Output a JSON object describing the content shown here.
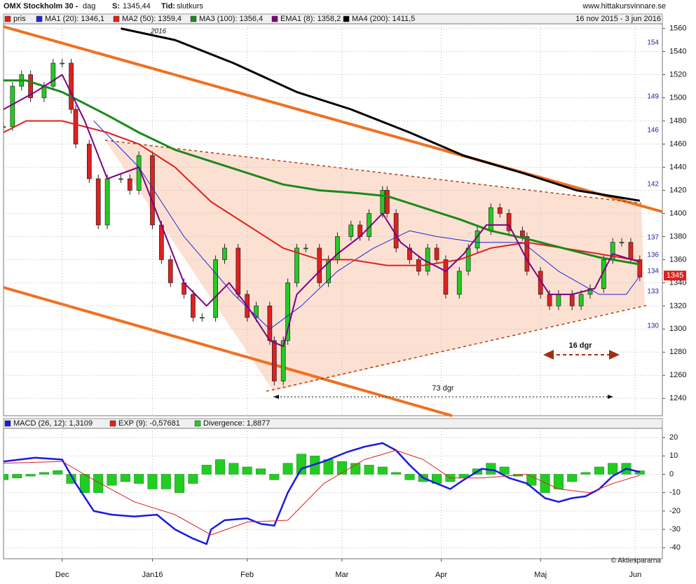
{
  "header": {
    "title": "OMX Stockholm 30 -",
    "interval": "dag",
    "price_label": "S:",
    "price": "1345,44",
    "time_label": "Tid:",
    "time": "slutkurs",
    "site": "www.hittakursvinnare.se",
    "range": "16 nov 2015 - 3 jun 2016"
  },
  "chart_data": [
    {
      "type": "line",
      "xlim": [
        0,
        146
      ],
      "ylim": [
        1225,
        1564
      ],
      "yticks": [
        1240,
        1260,
        1280,
        1300,
        1320,
        1340,
        1360,
        1380,
        1400,
        1420,
        1440,
        1460,
        1480,
        1500,
        1520,
        1540,
        1560
      ],
      "xticks": [
        {
          "value": 13,
          "label": "Dec"
        },
        {
          "value": 33,
          "label": "Jan16"
        },
        {
          "value": 54,
          "label": "Feb"
        },
        {
          "value": 75,
          "label": "Mar"
        },
        {
          "value": 97,
          "label": "Apr"
        },
        {
          "value": 119,
          "label": "Maj"
        },
        {
          "value": 140,
          "label": "Jun"
        }
      ],
      "grid": true,
      "annotations": [
        "16 dgr",
        "73 dgr"
      ],
      "year_label": "2016",
      "last_price_label": "1345",
      "side_labels": [
        "154",
        "149",
        "146",
        "142",
        "137",
        "136",
        "134",
        "133",
        "130"
      ],
      "series": [
        {
          "name": "pris",
          "color": "#e02020",
          "style": "candles",
          "x": [
            0,
            2,
            4,
            6,
            9,
            11,
            13,
            15,
            16,
            19,
            21,
            23,
            26,
            28,
            30,
            33,
            35,
            37,
            40,
            42,
            44,
            47,
            49,
            52,
            54,
            56,
            59,
            60,
            62,
            63,
            65,
            67,
            70,
            72,
            74,
            77,
            79,
            81,
            84,
            85,
            87,
            90,
            92,
            94,
            96,
            98,
            101,
            103,
            105,
            108,
            110,
            112,
            115,
            116,
            119,
            121,
            123,
            126,
            128,
            130,
            133,
            135,
            137,
            139,
            141
          ],
          "values": [
            1475,
            1510,
            1520,
            1500,
            1510,
            1530,
            1530,
            1490,
            1460,
            1430,
            1390,
            1430,
            1430,
            1420,
            1450,
            1390,
            1360,
            1340,
            1330,
            1310,
            1310,
            1360,
            1370,
            1330,
            1310,
            1320,
            1290,
            1255,
            1290,
            1340,
            1370,
            1370,
            1340,
            1360,
            1380,
            1390,
            1380,
            1400,
            1420,
            1400,
            1370,
            1360,
            1350,
            1370,
            1360,
            1330,
            1350,
            1370,
            1385,
            1405,
            1400,
            1385,
            1380,
            1350,
            1330,
            1320,
            1330,
            1320,
            1330,
            1335,
            1360,
            1375,
            1375,
            1360,
            1345
          ]
        },
        {
          "name": "MA1 (20): 1346,1",
          "color": "#2323d8",
          "width": 1,
          "x": [
            20,
            30,
            40,
            51,
            59,
            66,
            74,
            82,
            90,
            96,
            105,
            115,
            123,
            132,
            138,
            141
          ],
          "values": [
            1480,
            1440,
            1380,
            1330,
            1300,
            1320,
            1350,
            1370,
            1385,
            1380,
            1375,
            1375,
            1350,
            1330,
            1330,
            1346
          ]
        },
        {
          "name": "MA2 (50): 1359,4",
          "color": "#e02020",
          "width": 2,
          "x": [
            0,
            5,
            13,
            23,
            30,
            38,
            46,
            54,
            62,
            70,
            77,
            85,
            93,
            101,
            108,
            116,
            124,
            132,
            141
          ],
          "values": [
            1470,
            1480,
            1480,
            1470,
            1460,
            1440,
            1410,
            1390,
            1370,
            1360,
            1360,
            1355,
            1355,
            1360,
            1370,
            1375,
            1370,
            1365,
            1359
          ]
        },
        {
          "name": "MA3 (100): 1356,4",
          "color": "#1a8a1a",
          "width": 3,
          "x": [
            0,
            5,
            13,
            23,
            30,
            38,
            46,
            54,
            62,
            70,
            77,
            85,
            93,
            101,
            108,
            116,
            124,
            132,
            141
          ],
          "values": [
            1515,
            1515,
            1505,
            1485,
            1470,
            1455,
            1445,
            1435,
            1425,
            1420,
            1418,
            1415,
            1405,
            1395,
            1385,
            1378,
            1370,
            1362,
            1356
          ]
        },
        {
          "name": "EMA1 (8): 1358,2",
          "color": "#800080",
          "width": 2,
          "x": [
            0,
            7,
            13,
            18,
            23,
            30,
            35,
            40,
            45,
            50,
            54,
            59,
            62,
            65,
            70,
            74,
            79,
            84,
            88,
            93,
            98,
            102,
            107,
            112,
            116,
            121,
            126,
            131,
            135,
            141
          ],
          "values": [
            1490,
            1505,
            1520,
            1480,
            1430,
            1440,
            1390,
            1340,
            1320,
            1340,
            1320,
            1290,
            1285,
            1330,
            1350,
            1365,
            1380,
            1400,
            1375,
            1360,
            1350,
            1365,
            1390,
            1390,
            1360,
            1330,
            1330,
            1335,
            1365,
            1358
          ]
        },
        {
          "name": "MA4 (200): 1411,5",
          "color": "#000000",
          "width": 3,
          "x": [
            26,
            38,
            51,
            65,
            77,
            90,
            102,
            115,
            127,
            141
          ],
          "values": [
            1560,
            1550,
            1530,
            1505,
            1490,
            1470,
            1450,
            1435,
            1420,
            1411
          ]
        }
      ]
    },
    {
      "type": "line",
      "xlim": [
        0,
        146
      ],
      "ylim": [
        -46,
        25
      ],
      "yticks": [
        20,
        10,
        0,
        -10,
        -20,
        -30,
        -40
      ],
      "grid": true,
      "credit": "© Aktiespararna",
      "series": [
        {
          "name": "MACD (26, 12): 1,3109",
          "color": "#1a1ae0",
          "width": 2.5,
          "x": [
            0,
            7,
            13,
            16,
            20,
            24,
            29,
            34,
            38,
            42,
            45,
            46,
            49,
            54,
            57,
            60,
            63,
            66,
            71,
            76,
            80,
            84,
            87,
            90,
            93,
            96,
            99,
            102,
            106,
            109,
            112,
            116,
            120,
            123,
            126,
            129,
            132,
            135,
            138,
            141
          ],
          "values": [
            7,
            9,
            8,
            -5,
            -20,
            -22,
            -23,
            -22,
            -30,
            -35,
            -38,
            -30,
            -25,
            -24,
            -27,
            -28,
            -10,
            3,
            7,
            12,
            15,
            17,
            13,
            5,
            -2,
            -5,
            -8,
            -3,
            3,
            2,
            -2,
            -5,
            -13,
            -15,
            -13,
            -12,
            -8,
            -1,
            3,
            1.3
          ]
        },
        {
          "name": "EXP (9): -0,57681",
          "color": "#e02020",
          "width": 1,
          "x": [
            0,
            13,
            20,
            29,
            38,
            46,
            54,
            63,
            71,
            80,
            87,
            93,
            99,
            106,
            116,
            123,
            130,
            135,
            141
          ],
          "values": [
            6,
            7,
            -3,
            -15,
            -22,
            -33,
            -26,
            -25,
            -5,
            8,
            13,
            8,
            -2,
            -2,
            0,
            -8,
            -10,
            -5,
            -0.58
          ]
        },
        {
          "name": "Divergence: 1,8877",
          "color": "#22cc22",
          "style": "bars",
          "x": [
            0,
            3,
            6,
            9,
            12,
            15,
            18,
            21,
            24,
            27,
            30,
            33,
            36,
            39,
            42,
            45,
            48,
            51,
            54,
            57,
            60,
            63,
            66,
            69,
            72,
            75,
            78,
            81,
            84,
            87,
            90,
            93,
            96,
            99,
            102,
            105,
            108,
            111,
            114,
            117,
            120,
            123,
            126,
            129,
            132,
            135,
            138,
            141
          ],
          "values": [
            -3,
            -2,
            -1,
            1,
            2,
            -5,
            -10,
            -10,
            -6,
            -4,
            -5,
            -8,
            -8,
            -10,
            -5,
            5,
            8,
            6,
            4,
            3,
            -3,
            6,
            11,
            10,
            8,
            7,
            6,
            5,
            4,
            1,
            -3,
            -4,
            -5,
            -4,
            -2,
            3,
            6,
            4,
            -1,
            -6,
            -10,
            -8,
            -4,
            1,
            4,
            6,
            6,
            1.9
          ]
        }
      ]
    }
  ]
}
